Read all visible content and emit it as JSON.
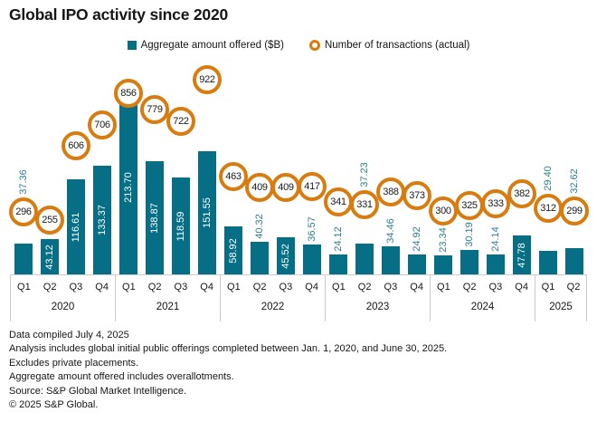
{
  "title": "Global IPO activity since 2020",
  "legend": {
    "bar_series": "Aggregate amount offered ($B)",
    "marker_series": "Number of transactions (actual)"
  },
  "colors": {
    "bar": "#066E85",
    "bar_label_inside": "#FFFFFF",
    "bar_label_outside": "#2F7D92",
    "marker_ring": "#D97C10",
    "marker_fill": "#FFFFFF",
    "marker_text": "#1A1A1A",
    "axis_line": "#CBCBCB",
    "text": "#161616"
  },
  "chart_data": {
    "type": "bar",
    "title": "Global IPO activity since 2020",
    "legend_position": "top",
    "y_axis": "hidden",
    "series": [
      {
        "name": "Aggregate amount offered ($B)",
        "type": "bar",
        "unit": "$B"
      },
      {
        "name": "Number of transactions (actual)",
        "type": "marker",
        "unit": "transactions"
      }
    ],
    "groups": [
      {
        "year": "2020",
        "points": [
          {
            "quarter": "Q1",
            "amount": 37.36,
            "transactions": 296,
            "amount_label_pos": "above_circle"
          },
          {
            "quarter": "Q2",
            "amount": 43.12,
            "transactions": 255,
            "amount_label_pos": "inside"
          },
          {
            "quarter": "Q3",
            "amount": 116.61,
            "transactions": 606,
            "amount_label_pos": "inside"
          },
          {
            "quarter": "Q4",
            "amount": 133.37,
            "transactions": 706,
            "amount_label_pos": "inside"
          }
        ]
      },
      {
        "year": "2021",
        "points": [
          {
            "quarter": "Q1",
            "amount": 213.7,
            "transactions": 856,
            "amount_label_pos": "inside"
          },
          {
            "quarter": "Q2",
            "amount": 138.87,
            "transactions": 779,
            "amount_label_pos": "inside"
          },
          {
            "quarter": "Q3",
            "amount": 118.59,
            "transactions": 722,
            "amount_label_pos": "inside"
          },
          {
            "quarter": "Q4",
            "amount": 151.55,
            "transactions": 922,
            "amount_label_pos": "inside"
          }
        ]
      },
      {
        "year": "2022",
        "points": [
          {
            "quarter": "Q1",
            "amount": 58.92,
            "transactions": 463,
            "amount_label_pos": "inside"
          },
          {
            "quarter": "Q2",
            "amount": 40.32,
            "transactions": 409,
            "amount_label_pos": "above_bar"
          },
          {
            "quarter": "Q3",
            "amount": 45.52,
            "transactions": 409,
            "amount_label_pos": "inside"
          },
          {
            "quarter": "Q4",
            "amount": 36.57,
            "transactions": 417,
            "amount_label_pos": "above_bar"
          }
        ]
      },
      {
        "year": "2023",
        "points": [
          {
            "quarter": "Q1",
            "amount": 24.12,
            "transactions": 341,
            "amount_label_pos": "above_bar"
          },
          {
            "quarter": "Q2",
            "amount": 37.23,
            "transactions": 331,
            "amount_label_pos": "above_circle"
          },
          {
            "quarter": "Q3",
            "amount": 34.46,
            "transactions": 388,
            "amount_label_pos": "above_bar"
          },
          {
            "quarter": "Q4",
            "amount": 24.92,
            "transactions": 373,
            "amount_label_pos": "above_bar"
          }
        ]
      },
      {
        "year": "2024",
        "points": [
          {
            "quarter": "Q1",
            "amount": 23.34,
            "transactions": 300,
            "amount_label_pos": "above_bar"
          },
          {
            "quarter": "Q2",
            "amount": 30.19,
            "transactions": 325,
            "amount_label_pos": "above_bar"
          },
          {
            "quarter": "Q3",
            "amount": 24.14,
            "transactions": 333,
            "amount_label_pos": "above_bar"
          },
          {
            "quarter": "Q4",
            "amount": 47.78,
            "transactions": 382,
            "amount_label_pos": "inside"
          }
        ]
      },
      {
        "year": "2025",
        "points": [
          {
            "quarter": "Q1",
            "amount": 29.4,
            "transactions": 312,
            "amount_label_pos": "above_circle"
          },
          {
            "quarter": "Q2",
            "amount": 32.62,
            "transactions": 299,
            "amount_label_pos": "above_circle"
          }
        ]
      }
    ]
  },
  "footnotes": [
    "Data compiled July 4, 2025",
    "Analysis includes global initial public offerings completed between Jan. 1, 2020, and June 30, 2025.",
    "Excludes private placements.",
    "Aggregate amount offered includes overallotments.",
    "Source: S&P Global Market Intelligence.",
    "© 2025 S&P Global."
  ]
}
